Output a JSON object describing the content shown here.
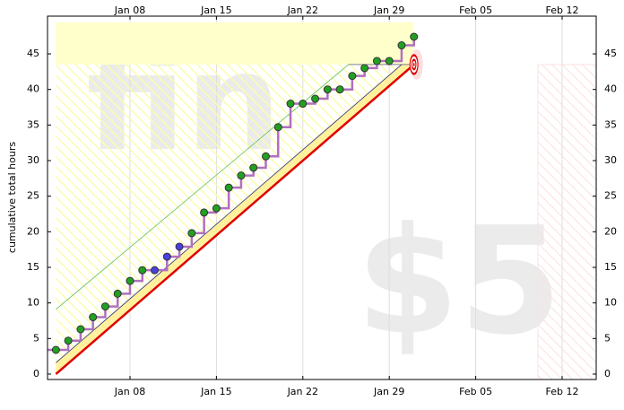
{
  "chart_data": {
    "type": "step",
    "y_label": "cumulative total hours",
    "watermarks": [
      "fin",
      "$5"
    ],
    "xlim": [
      1.32,
      45.76
    ],
    "ylim": [
      -0.76,
      50.3
    ],
    "xticks": [
      {
        "value": 8,
        "label": "Jan 08"
      },
      {
        "value": 15,
        "label": "Jan 15"
      },
      {
        "value": 22,
        "label": "Jan 22"
      },
      {
        "value": 29,
        "label": "Jan 29"
      },
      {
        "value": 36,
        "label": "Feb 05"
      },
      {
        "value": 43,
        "label": "Feb 12"
      }
    ],
    "yticks": [
      0,
      5,
      10,
      15,
      20,
      25,
      30,
      35,
      40,
      45
    ],
    "grid": true,
    "x": [
      2,
      3,
      4,
      5,
      6,
      7,
      8,
      9,
      10,
      11,
      12,
      13,
      14,
      15,
      16,
      17,
      18,
      19,
      20,
      21,
      22,
      23,
      24,
      25,
      26,
      27,
      28,
      29,
      30,
      31
    ],
    "values": [
      3.4,
      4.7,
      6.3,
      8.0,
      9.5,
      11.3,
      13.1,
      14.6,
      14.6,
      16.5,
      17.9,
      19.8,
      22.7,
      23.3,
      26.2,
      27.9,
      29.0,
      30.6,
      34.7,
      38.0,
      38.0,
      38.7,
      40.0,
      40.0,
      41.9,
      43.0,
      44.0,
      44.0,
      46.2,
      47.4
    ],
    "point_colors": [
      "#22a022",
      "#22a022",
      "#22a022",
      "#22a022",
      "#22a022",
      "#22a022",
      "#22a022",
      "#22a022",
      "#4a3fe0",
      "#4a3fe0",
      "#4a3fe0",
      "#22a022",
      "#22a022",
      "#22a022",
      "#22a022",
      "#22a022",
      "#22a022",
      "#22a022",
      "#22a022",
      "#22a022",
      "#22a022",
      "#22a022",
      "#22a022",
      "#22a022",
      "#22a022",
      "#22a022",
      "#22a022",
      "#22a022",
      "#22a022",
      "#22a022"
    ],
    "step_color": "#b070c0",
    "road": {
      "x": [
        2,
        31
      ],
      "values": [
        0,
        43.5
      ],
      "color": "#e00000"
    },
    "upper_line": {
      "x": [
        2,
        30
      ],
      "values": [
        1.6,
        43.5
      ],
      "color": "#303070"
    },
    "green_line": {
      "x": [
        2,
        25.7
      ],
      "values": [
        9.1,
        43.5
      ],
      "color": "#60c060"
    }
  }
}
